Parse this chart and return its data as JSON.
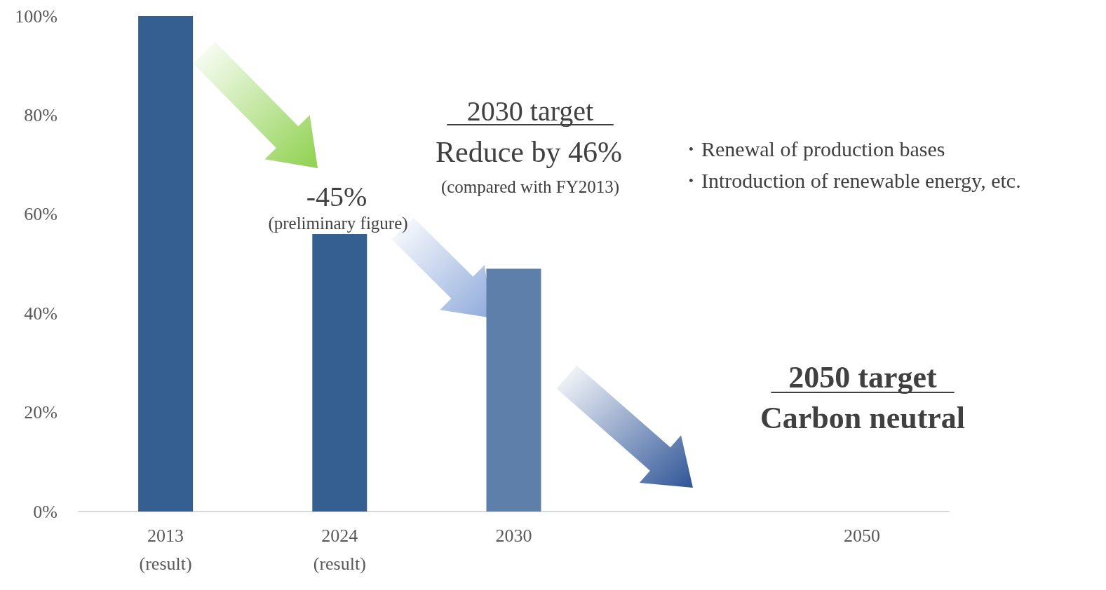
{
  "chart_data": {
    "type": "bar",
    "categories": [
      "2013\n(result)",
      "2024\n(result)",
      "2030",
      null,
      "2050"
    ],
    "values": [
      100,
      56,
      49,
      null,
      null
    ],
    "colors": [
      "#365f91",
      "#365f91",
      "#5f7fab",
      "#365f91",
      "#365f91"
    ],
    "ylim": [
      0,
      100
    ],
    "yticks": [
      {
        "value": 0,
        "label": "0%"
      },
      {
        "value": 20,
        "label": "20%"
      },
      {
        "value": 40,
        "label": "40%"
      },
      {
        "value": 60,
        "label": "60%"
      },
      {
        "value": 80,
        "label": "80%"
      },
      {
        "value": 100,
        "label": "100%"
      }
    ],
    "grid": false,
    "annotations": [
      "2030 target",
      "Reduce by 46%",
      "(compared with FY2013)",
      "-45%",
      "(preliminary figure)",
      "・Renewal of production bases",
      "・Introduction of renewable energy, etc.",
      "2050 target",
      "Carbon neutral"
    ]
  }
}
